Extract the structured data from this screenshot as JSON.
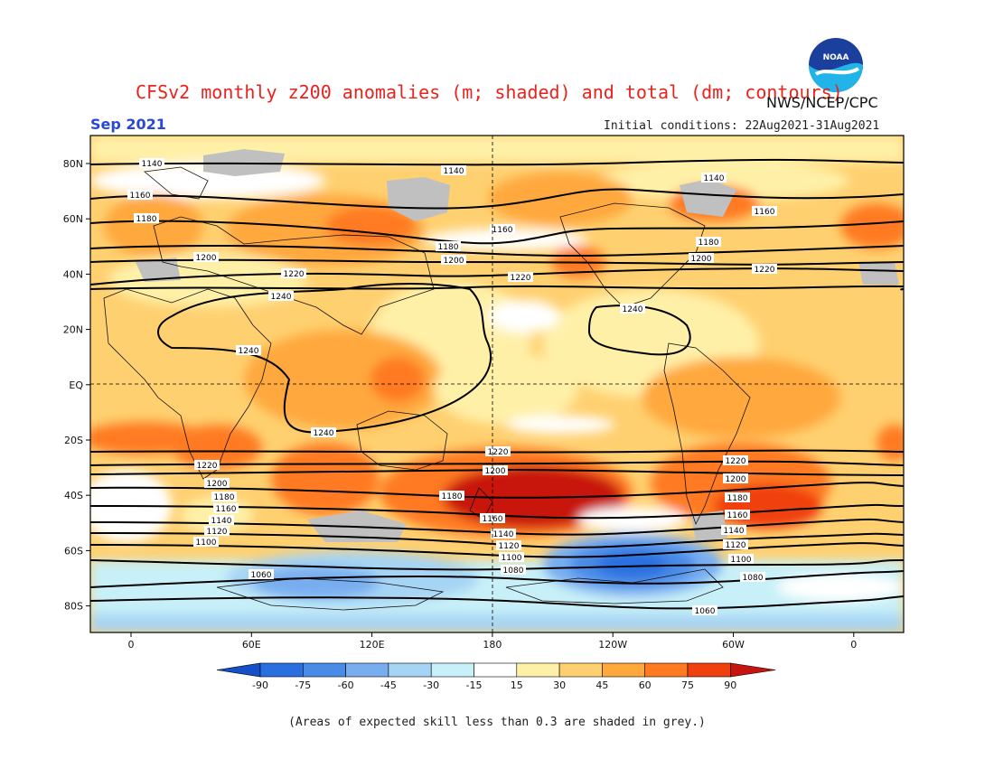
{
  "title": "CFSv2 monthly z200 anomalies (m; shaded) and total (dm; contours)",
  "agency": "NWS/NCEP/CPC",
  "month": "Sep 2021",
  "initial_conditions": "Initial conditions: 22Aug2021-31Aug2021",
  "footnote": "(Areas of expected skill less than 0.3 are shaded in grey.)",
  "logo_text": "NOAA",
  "lat_labels": [
    "80N",
    "60N",
    "40N",
    "20N",
    "EQ",
    "20S",
    "40S",
    "60S",
    "80S"
  ],
  "lon_labels": [
    "0",
    "60E",
    "120E",
    "180",
    "120W",
    "60W",
    "0"
  ],
  "colorbar": {
    "ticks": [
      "-90",
      "-75",
      "-60",
      "-45",
      "-30",
      "-15",
      "15",
      "30",
      "45",
      "60",
      "75",
      "90"
    ],
    "colors": [
      "#1450c8",
      "#2a6fe0",
      "#4a8be8",
      "#78aef0",
      "#a6d4f4",
      "#c8f0f8",
      "#ffffff",
      "#fff0a8",
      "#ffd070",
      "#ffa83c",
      "#ff7a20",
      "#f04010",
      "#c81410"
    ]
  },
  "contour_labels": {
    "north": [
      "1140",
      "1140",
      "1140",
      "1160",
      "1160",
      "1160",
      "1180",
      "1180",
      "1180",
      "1200",
      "1200",
      "1200",
      "1220",
      "1220",
      "1220",
      "1240",
      "1240"
    ],
    "tropics": [
      "1240",
      "1240"
    ],
    "south": [
      "1220",
      "1220",
      "1220",
      "1200",
      "1200",
      "1200",
      "1180",
      "1180",
      "1180",
      "1160",
      "1160",
      "1160",
      "1140",
      "1140",
      "1140",
      "1120",
      "1120",
      "1120",
      "1100",
      "1100",
      "1100",
      "1080",
      "1080",
      "1060",
      "1060"
    ]
  }
}
